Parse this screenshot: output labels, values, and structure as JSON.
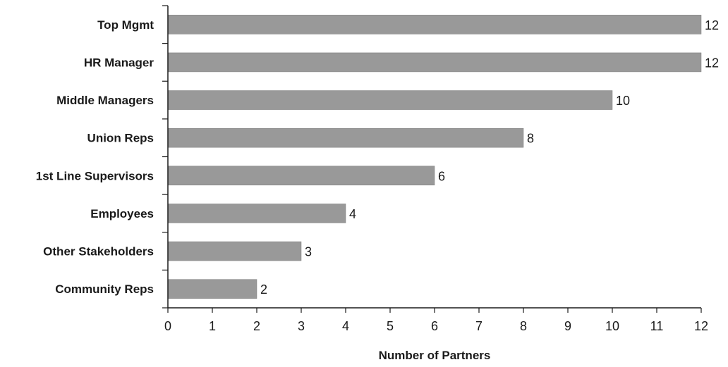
{
  "chart_data": {
    "type": "bar",
    "orientation": "horizontal",
    "categories": [
      "Top Mgmt",
      "HR Manager",
      "Middle Managers",
      "Union Reps",
      "1st Line Supervisors",
      "Employees",
      "Other Stakeholders",
      "Community Reps"
    ],
    "values": [
      12,
      12,
      10,
      8,
      6,
      4,
      3,
      2
    ],
    "value_labels": [
      "12",
      "12",
      "10",
      "8",
      "6",
      "4",
      "3",
      "2"
    ],
    "xlabel": "Number of Partners",
    "xlim": [
      0,
      12
    ],
    "xticks": [
      "0",
      "1",
      "2",
      "3",
      "4",
      "5",
      "6",
      "7",
      "8",
      "9",
      "10",
      "11",
      "12"
    ],
    "grid": false,
    "bar_color": "#999999",
    "axis_color": "#1a1a1a"
  }
}
